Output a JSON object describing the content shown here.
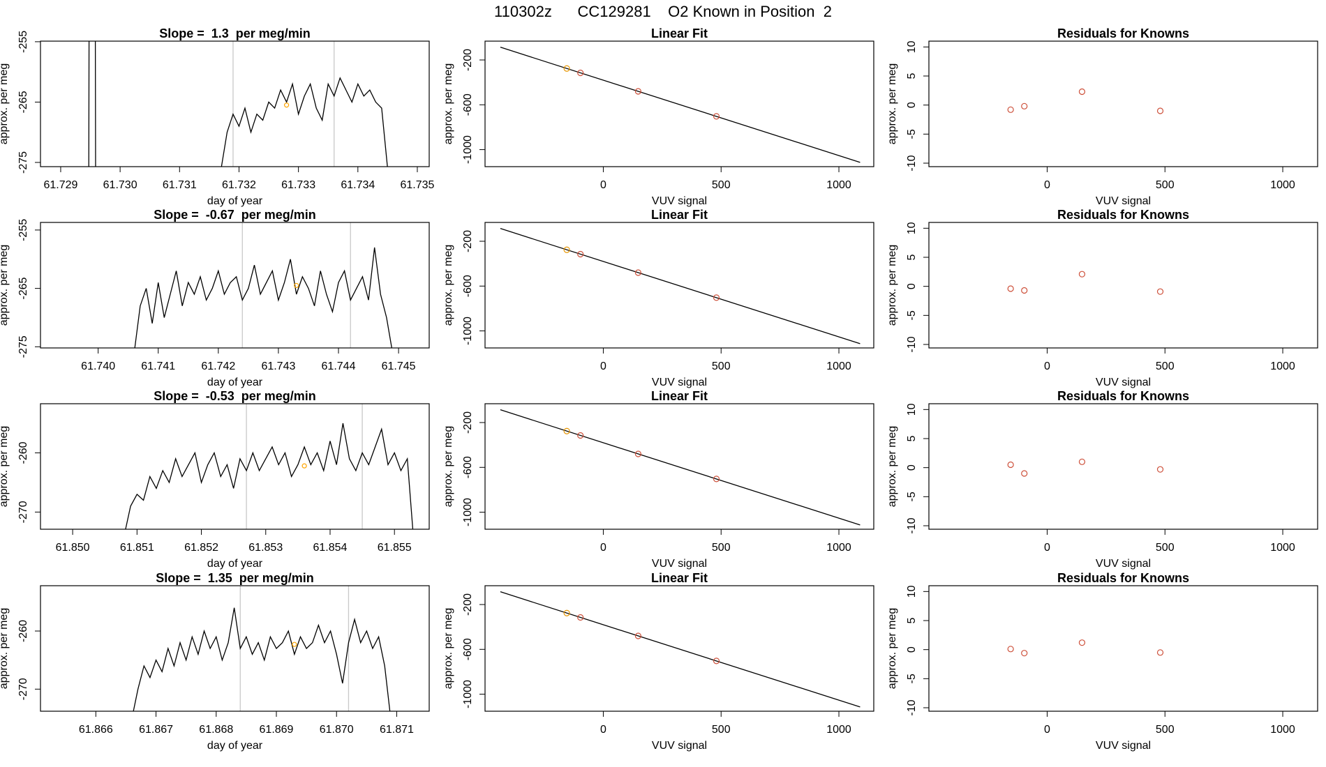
{
  "title": "110302z      CC129281    O2 Known in Position  2",
  "chart_data": [
    {
      "type": "line",
      "title": "Slope =  1.3  per meg/min",
      "x_label": "day of year",
      "y_label": "approx. per meg",
      "xlim": [
        61.72866,
        61.7352
      ],
      "ylim": [
        -275.7,
        -254.9
      ],
      "xticks": [
        61.729,
        {
          "value": 61.73,
          "label": "61.730"
        },
        61.731,
        61.732,
        61.733,
        61.734,
        61.735
      ],
      "yticks": [
        -275,
        -265,
        -255
      ],
      "reference_lines": {
        "x": [
          61.7319,
          61.7336
        ],
        "color": "#c8c8c8"
      },
      "highlight": {
        "x": 61.7328,
        "y": -265.5,
        "color": "#ffa500"
      },
      "series": [
        {
          "color": "#000000",
          "x": [
            61.72947,
            61.72948,
            61.72958,
            61.72959,
            61.7317,
            61.7318,
            61.7319,
            61.732,
            61.7321,
            61.7322,
            61.7323,
            61.7324,
            61.7325,
            61.7326,
            61.7327,
            61.7328,
            61.7329,
            61.733,
            61.7331,
            61.7332,
            61.7333,
            61.7334,
            61.7335,
            61.7336,
            61.7337,
            61.7338,
            61.7339,
            61.734,
            61.7341,
            61.7342,
            61.7343,
            61.7344,
            61.7345
          ],
          "values": [
            -290,
            -240,
            -240,
            -290,
            -276,
            -270,
            -267,
            -269,
            -266,
            -270,
            -267,
            -268,
            -265,
            -266,
            -263,
            -265,
            -262,
            -267,
            -264,
            -262,
            -266,
            -268,
            -262,
            -264,
            -261,
            -263,
            -265,
            -262,
            -264,
            -263,
            -265,
            -266,
            -276
          ]
        }
      ]
    },
    {
      "type": "fit",
      "title": "Linear Fit",
      "x_label": "VUV signal",
      "y_label": "approx. per meg",
      "xlim": [
        -502,
        1148
      ],
      "ylim": [
        -1152,
        -32
      ],
      "xticks": [
        0,
        500,
        1000
      ],
      "yticks": [
        -1000,
        -600,
        -200
      ],
      "series": [
        {
          "kind": "line",
          "color": "#000000",
          "x": [
            -437,
            1090
          ],
          "values": [
            -86,
            -1114
          ]
        },
        {
          "kind": "points",
          "x": [
            -155,
            -97,
            148,
            480
          ],
          "values": [
            -276,
            -315,
            -480,
            -703
          ],
          "colors": [
            "#e69500",
            "#cd4f39",
            "#cd4f39",
            "#cd4f39"
          ]
        }
      ]
    },
    {
      "type": "scatter",
      "title": "Residuals for Knowns",
      "x_label": "VUV signal",
      "y_label": "approx. per meg",
      "xlim": [
        -502,
        1148
      ],
      "ylim": [
        -10.6,
        11
      ],
      "xticks": [
        0,
        500,
        1000
      ],
      "yticks": [
        -10,
        -5,
        0,
        5,
        10
      ],
      "series": [
        {
          "x": [
            -155,
            -97,
            148,
            480
          ],
          "values": [
            -0.8,
            -0.2,
            2.3,
            -1.0
          ],
          "color": "#cd4f39"
        }
      ]
    },
    {
      "type": "line",
      "title": "Slope =  -0.67  per meg/min",
      "x_label": "day of year",
      "y_label": "approx. per meg",
      "xlim": [
        61.73904,
        61.74551
      ],
      "ylim": [
        -275.2,
        -253.7
      ],
      "xticks": [
        {
          "value": 61.74,
          "label": "61.740"
        },
        61.741,
        61.742,
        61.743,
        61.744,
        61.745
      ],
      "yticks": [
        -275,
        -265,
        -255
      ],
      "reference_lines": {
        "x": [
          61.7424,
          61.7442
        ],
        "color": "#c8c8c8"
      },
      "highlight": {
        "x": 61.7433,
        "y": -264.5,
        "color": "#ffa500"
      },
      "series": [
        {
          "color": "#000000",
          "x": [
            61.7406,
            61.7407,
            61.7408,
            61.7409,
            61.741,
            61.7411,
            61.7412,
            61.7413,
            61.7414,
            61.7415,
            61.7416,
            61.7417,
            61.7418,
            61.7419,
            61.742,
            61.7421,
            61.7422,
            61.7423,
            61.7424,
            61.7425,
            61.7426,
            61.7427,
            61.7428,
            61.7429,
            61.743,
            61.7431,
            61.7432,
            61.7433,
            61.7434,
            61.7435,
            61.7436,
            61.7437,
            61.7438,
            61.7439,
            61.744,
            61.7441,
            61.7442,
            61.7443,
            61.7444,
            61.7445,
            61.7446,
            61.7447,
            61.7448,
            61.7449
          ],
          "values": [
            -276,
            -268,
            -265,
            -271,
            -264,
            -270,
            -266,
            -262,
            -268,
            -264,
            -266,
            -263,
            -267,
            -265,
            -262,
            -266,
            -264,
            -263,
            -267,
            -265,
            -261,
            -266,
            -264,
            -262,
            -267,
            -264,
            -260,
            -266,
            -263,
            -265,
            -268,
            -262,
            -266,
            -269,
            -264,
            -262,
            -267,
            -265,
            -263,
            -267,
            -258,
            -266,
            -270,
            -276
          ]
        }
      ]
    },
    {
      "type": "fit",
      "title": "Linear Fit",
      "x_label": "VUV signal",
      "y_label": "approx. per meg",
      "xlim": [
        -502,
        1148
      ],
      "ylim": [
        -1152,
        -32
      ],
      "xticks": [
        0,
        500,
        1000
      ],
      "yticks": [
        -1000,
        -600,
        -200
      ],
      "series": [
        {
          "kind": "line",
          "color": "#000000",
          "x": [
            -437,
            1090
          ],
          "values": [
            -86,
            -1114
          ]
        },
        {
          "kind": "points",
          "x": [
            -155,
            -97,
            148,
            480
          ],
          "values": [
            -276,
            -315,
            -480,
            -703
          ],
          "colors": [
            "#e69500",
            "#cd4f39",
            "#cd4f39",
            "#cd4f39"
          ]
        }
      ]
    },
    {
      "type": "scatter",
      "title": "Residuals for Knowns",
      "x_label": "VUV signal",
      "y_label": "approx. per meg",
      "xlim": [
        -502,
        1148
      ],
      "ylim": [
        -10.6,
        11
      ],
      "xticks": [
        0,
        500,
        1000
      ],
      "yticks": [
        -10,
        -5,
        0,
        5,
        10
      ],
      "series": [
        {
          "x": [
            -155,
            -97,
            148,
            480
          ],
          "values": [
            -0.4,
            -0.7,
            2.1,
            -0.9
          ],
          "color": "#cd4f39"
        }
      ]
    },
    {
      "type": "line",
      "title": "Slope =  -0.53  per meg/min",
      "x_label": "day of year",
      "y_label": "approx. per meg",
      "xlim": [
        61.8495,
        61.85554
      ],
      "ylim": [
        -272.9,
        -251.7
      ],
      "xticks": [
        {
          "value": 61.85,
          "label": "61.850"
        },
        61.851,
        61.852,
        61.853,
        61.854,
        61.855
      ],
      "yticks": [
        -270,
        -260
      ],
      "reference_lines": {
        "x": [
          61.8527,
          61.8545
        ],
        "color": "#c8c8c8"
      },
      "highlight": {
        "x": 61.8536,
        "y": -262.2,
        "color": "#ffa500"
      },
      "series": [
        {
          "color": "#000000",
          "x": [
            61.8508,
            61.8509,
            61.851,
            61.8511,
            61.8512,
            61.8513,
            61.8514,
            61.8515,
            61.8516,
            61.8517,
            61.8518,
            61.8519,
            61.852,
            61.8521,
            61.8522,
            61.8523,
            61.8524,
            61.8525,
            61.8526,
            61.8527,
            61.8528,
            61.8529,
            61.853,
            61.8531,
            61.8532,
            61.8533,
            61.8534,
            61.8535,
            61.8536,
            61.8537,
            61.8538,
            61.8539,
            61.854,
            61.8541,
            61.8542,
            61.8543,
            61.8544,
            61.8545,
            61.8546,
            61.8547,
            61.8548,
            61.8549,
            61.855,
            61.8551,
            61.8552,
            61.8553
          ],
          "values": [
            -274,
            -269,
            -267,
            -268,
            -264,
            -266,
            -263,
            -265,
            -261,
            -264,
            -262,
            -260,
            -265,
            -262,
            -260,
            -264,
            -262,
            -266,
            -261,
            -263,
            -260,
            -263,
            -261,
            -259,
            -262,
            -260,
            -264,
            -262,
            -259,
            -262,
            -260,
            -263,
            -258,
            -262,
            -255,
            -261,
            -263,
            -260,
            -262,
            -259,
            -256,
            -262,
            -260,
            -263,
            -261,
            -275
          ]
        }
      ]
    },
    {
      "type": "fit",
      "title": "Linear Fit",
      "x_label": "VUV signal",
      "y_label": "approx. per meg",
      "xlim": [
        -502,
        1148
      ],
      "ylim": [
        -1152,
        -32
      ],
      "xticks": [
        0,
        500,
        1000
      ],
      "yticks": [
        -1000,
        -600,
        -200
      ],
      "series": [
        {
          "kind": "line",
          "color": "#000000",
          "x": [
            -437,
            1090
          ],
          "values": [
            -86,
            -1114
          ]
        },
        {
          "kind": "points",
          "x": [
            -155,
            -97,
            148,
            480
          ],
          "values": [
            -276,
            -315,
            -480,
            -703
          ],
          "colors": [
            "#e69500",
            "#cd4f39",
            "#cd4f39",
            "#cd4f39"
          ]
        }
      ]
    },
    {
      "type": "scatter",
      "title": "Residuals for Knowns",
      "x_label": "VUV signal",
      "y_label": "approx. per meg",
      "xlim": [
        -502,
        1148
      ],
      "ylim": [
        -10.6,
        11
      ],
      "xticks": [
        0,
        500,
        1000
      ],
      "yticks": [
        -10,
        -5,
        0,
        5,
        10
      ],
      "series": [
        {
          "x": [
            -155,
            -97,
            148,
            480
          ],
          "values": [
            0.5,
            -1.0,
            1.0,
            -0.3
          ],
          "color": "#cd4f39"
        }
      ]
    },
    {
      "type": "line",
      "title": "Slope =  1.35  per meg/min",
      "x_label": "day of year",
      "y_label": "approx. per meg",
      "xlim": [
        61.86508,
        61.87154
      ],
      "ylim": [
        -273.8,
        -252.2
      ],
      "xticks": [
        61.866,
        61.867,
        61.868,
        61.869,
        {
          "value": 61.87,
          "label": "61.870"
        },
        61.871
      ],
      "yticks": [
        -270,
        -260
      ],
      "reference_lines": {
        "x": [
          61.8684,
          61.8702
        ],
        "color": "#c8c8c8"
      },
      "highlight": {
        "x": 61.8693,
        "y": -262.3,
        "color": "#ffa500"
      },
      "series": [
        {
          "color": "#000000",
          "x": [
            61.8666,
            61.8667,
            61.8668,
            61.8669,
            61.867,
            61.8671,
            61.8672,
            61.8673,
            61.8674,
            61.8675,
            61.8676,
            61.8677,
            61.8678,
            61.8679,
            61.868,
            61.8681,
            61.8682,
            61.8683,
            61.8684,
            61.8685,
            61.8686,
            61.8687,
            61.8688,
            61.8689,
            61.869,
            61.8691,
            61.8692,
            61.8693,
            61.8694,
            61.8695,
            61.8696,
            61.8697,
            61.8698,
            61.8699,
            61.87,
            61.8701,
            61.8702,
            61.8703,
            61.8704,
            61.8705,
            61.8706,
            61.8707,
            61.8708,
            61.8709
          ],
          "values": [
            -275,
            -270,
            -266,
            -268,
            -265,
            -267,
            -263,
            -266,
            -262,
            -265,
            -261,
            -264,
            -260,
            -263,
            -261,
            -265,
            -262,
            -256,
            -263,
            -261,
            -264,
            -262,
            -265,
            -261,
            -263,
            -262,
            -260,
            -264,
            -261,
            -263,
            -262,
            -259,
            -262,
            -260,
            -264,
            -269,
            -262,
            -258,
            -262,
            -260,
            -263,
            -261,
            -266,
            -275
          ]
        }
      ]
    },
    {
      "type": "fit",
      "title": "Linear Fit",
      "x_label": "VUV signal",
      "y_label": "approx. per meg",
      "xlim": [
        -502,
        1148
      ],
      "ylim": [
        -1152,
        -32
      ],
      "xticks": [
        0,
        500,
        1000
      ],
      "yticks": [
        -1000,
        -600,
        -200
      ],
      "series": [
        {
          "kind": "line",
          "color": "#000000",
          "x": [
            -437,
            1090
          ],
          "values": [
            -86,
            -1114
          ]
        },
        {
          "kind": "points",
          "x": [
            -155,
            -97,
            148,
            480
          ],
          "values": [
            -276,
            -315,
            -480,
            -703
          ],
          "colors": [
            "#e69500",
            "#cd4f39",
            "#cd4f39",
            "#cd4f39"
          ]
        }
      ]
    },
    {
      "type": "scatter",
      "title": "Residuals for Knowns",
      "x_label": "VUV signal",
      "y_label": "approx. per meg",
      "xlim": [
        -502,
        1148
      ],
      "ylim": [
        -10.6,
        11
      ],
      "xticks": [
        0,
        500,
        1000
      ],
      "yticks": [
        -10,
        -5,
        0,
        5,
        10
      ],
      "series": [
        {
          "x": [
            -155,
            -97,
            148,
            480
          ],
          "values": [
            0.1,
            -0.6,
            1.2,
            -0.5
          ],
          "color": "#cd4f39"
        }
      ]
    }
  ]
}
